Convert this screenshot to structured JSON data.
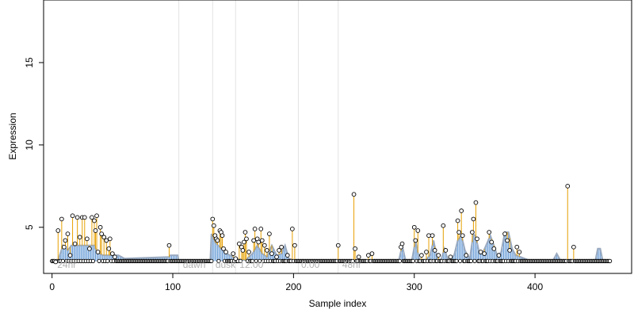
{
  "chart_data": {
    "type": "scatter",
    "title": "",
    "xlabel": "Sample index",
    "ylabel": "Expression",
    "xlim": [
      -7,
      480
    ],
    "ylim": [
      2.2,
      18.8
    ],
    "x_ticks": [
      0,
      100,
      200,
      300,
      400
    ],
    "y_ticks": [
      5,
      10,
      15
    ],
    "grid": false,
    "phase_boundaries": [
      105,
      133,
      152,
      204,
      237
    ],
    "phase_labels": [
      {
        "x": 3,
        "label": "24hr"
      },
      {
        "x": 107,
        "label": "dawn"
      },
      {
        "x": 134,
        "label": "dusk"
      },
      {
        "x": 154,
        "label": "12:00"
      },
      {
        "x": 205,
        "label": "0:00"
      },
      {
        "x": 239,
        "label": "48hr"
      }
    ],
    "colors": {
      "points": "#000000",
      "high_stems": "#e69f00",
      "low_stems": "#6fa0d8",
      "smooth_line": "#9aaac0",
      "phase_lines": "#e3e3e3",
      "phase_text": "#b3b3b3"
    },
    "baseline_points": {
      "x_start": 0,
      "x_end": 462,
      "step": 1,
      "value": 2.95
    },
    "points": [
      [
        3,
        2.9
      ],
      [
        5,
        4.8
      ],
      [
        8,
        5.5
      ],
      [
        10,
        3.8
      ],
      [
        11,
        4.2
      ],
      [
        13,
        4.6
      ],
      [
        15,
        3.3
      ],
      [
        17,
        5.7
      ],
      [
        19,
        4.0
      ],
      [
        21,
        5.6
      ],
      [
        23,
        4.4
      ],
      [
        25,
        5.6
      ],
      [
        27,
        5.6
      ],
      [
        29,
        4.3
      ],
      [
        31,
        3.7
      ],
      [
        33,
        5.6
      ],
      [
        35,
        5.4
      ],
      [
        36,
        4.8
      ],
      [
        37,
        5.7
      ],
      [
        38,
        3.5
      ],
      [
        40,
        5.0
      ],
      [
        41,
        4.6
      ],
      [
        43,
        4.4
      ],
      [
        45,
        4.2
      ],
      [
        47,
        3.7
      ],
      [
        48,
        4.3
      ],
      [
        50,
        3.4
      ],
      [
        52,
        3.2
      ],
      [
        97,
        3.9
      ],
      [
        133,
        5.5
      ],
      [
        134,
        5.1
      ],
      [
        135,
        4.5
      ],
      [
        136,
        4.3
      ],
      [
        137,
        4.2
      ],
      [
        139,
        4.8
      ],
      [
        140,
        4.7
      ],
      [
        141,
        4.5
      ],
      [
        142,
        3.7
      ],
      [
        144,
        3.5
      ],
      [
        150,
        3.4
      ],
      [
        152,
        3.1
      ],
      [
        155,
        4.0
      ],
      [
        157,
        3.8
      ],
      [
        158,
        3.6
      ],
      [
        159,
        4.1
      ],
      [
        160,
        4.7
      ],
      [
        161,
        4.3
      ],
      [
        163,
        3.5
      ],
      [
        167,
        4.2
      ],
      [
        168,
        4.9
      ],
      [
        170,
        4.3
      ],
      [
        171,
        4.1
      ],
      [
        173,
        4.9
      ],
      [
        174,
        4.2
      ],
      [
        176,
        3.9
      ],
      [
        178,
        3.6
      ],
      [
        180,
        4.6
      ],
      [
        182,
        3.4
      ],
      [
        186,
        3.2
      ],
      [
        188,
        3.6
      ],
      [
        190,
        3.8
      ],
      [
        195,
        3.3
      ],
      [
        199,
        4.9
      ],
      [
        201,
        3.9
      ],
      [
        237,
        3.9
      ],
      [
        250,
        7.0
      ],
      [
        251,
        3.7
      ],
      [
        254,
        3.2
      ],
      [
        262,
        3.3
      ],
      [
        265,
        3.4
      ],
      [
        289,
        3.8
      ],
      [
        290,
        4.0
      ],
      [
        300,
        5.0
      ],
      [
        301,
        4.2
      ],
      [
        303,
        4.8
      ],
      [
        306,
        3.3
      ],
      [
        310,
        3.5
      ],
      [
        312,
        4.5
      ],
      [
        315,
        4.5
      ],
      [
        317,
        3.6
      ],
      [
        320,
        3.3
      ],
      [
        324,
        5.1
      ],
      [
        326,
        3.6
      ],
      [
        330,
        3.2
      ],
      [
        336,
        5.4
      ],
      [
        337,
        4.7
      ],
      [
        339,
        6.0
      ],
      [
        340,
        4.5
      ],
      [
        343,
        3.3
      ],
      [
        348,
        4.7
      ],
      [
        349,
        5.5
      ],
      [
        351,
        6.5
      ],
      [
        352,
        4.3
      ],
      [
        355,
        3.5
      ],
      [
        358,
        3.4
      ],
      [
        362,
        4.7
      ],
      [
        364,
        4.1
      ],
      [
        366,
        3.7
      ],
      [
        370,
        3.3
      ],
      [
        375,
        4.6
      ],
      [
        377,
        4.2
      ],
      [
        379,
        3.6
      ],
      [
        385,
        3.8
      ],
      [
        387,
        3.5
      ],
      [
        427,
        7.5
      ],
      [
        432,
        3.8
      ]
    ],
    "smooth_line": [
      [
        0,
        2.9
      ],
      [
        5,
        3.0
      ],
      [
        9,
        3.9
      ],
      [
        13,
        3.6
      ],
      [
        16,
        3.9
      ],
      [
        35,
        3.9
      ],
      [
        37,
        3.5
      ],
      [
        42,
        3.3
      ],
      [
        50,
        3.3
      ],
      [
        55,
        3.3
      ],
      [
        60,
        3.1
      ],
      [
        97,
        3.2
      ],
      [
        98,
        3.3
      ],
      [
        104,
        3.3
      ],
      [
        105,
        2.9
      ],
      [
        131,
        2.9
      ],
      [
        132,
        4.6
      ],
      [
        135,
        4.1
      ],
      [
        140,
        3.7
      ],
      [
        145,
        3.4
      ],
      [
        152,
        3.1
      ],
      [
        160,
        3.0
      ],
      [
        166,
        3.4
      ],
      [
        170,
        3.9
      ],
      [
        174,
        3.4
      ],
      [
        178,
        3.2
      ],
      [
        182,
        3.9
      ],
      [
        186,
        3.3
      ],
      [
        190,
        3.4
      ],
      [
        193,
        3.9
      ],
      [
        196,
        3.1
      ],
      [
        205,
        2.9
      ],
      [
        287,
        2.9
      ],
      [
        290,
        3.9
      ],
      [
        293,
        2.9
      ],
      [
        298,
        3.0
      ],
      [
        301,
        4.2
      ],
      [
        304,
        3.1
      ],
      [
        308,
        2.9
      ],
      [
        313,
        3.3
      ],
      [
        316,
        4.2
      ],
      [
        319,
        3.1
      ],
      [
        322,
        3.0
      ],
      [
        325,
        3.7
      ],
      [
        328,
        3.0
      ],
      [
        333,
        3.3
      ],
      [
        336,
        4.2
      ],
      [
        339,
        4.5
      ],
      [
        342,
        3.6
      ],
      [
        344,
        3.3
      ],
      [
        346,
        3.1
      ],
      [
        349,
        4.6
      ],
      [
        351,
        4.4
      ],
      [
        354,
        3.4
      ],
      [
        357,
        3.5
      ],
      [
        360,
        4.0
      ],
      [
        363,
        4.5
      ],
      [
        366,
        3.9
      ],
      [
        369,
        3.2
      ],
      [
        372,
        3.5
      ],
      [
        375,
        4.7
      ],
      [
        378,
        4.7
      ],
      [
        381,
        3.7
      ],
      [
        384,
        3.3
      ],
      [
        388,
        3.2
      ],
      [
        395,
        3.0
      ],
      [
        415,
        3.0
      ],
      [
        418,
        3.4
      ],
      [
        421,
        3.0
      ],
      [
        430,
        3.0
      ],
      [
        450,
        3.0
      ],
      [
        452,
        3.7
      ],
      [
        454,
        3.7
      ],
      [
        456,
        3.0
      ],
      [
        462,
        3.0
      ]
    ]
  }
}
